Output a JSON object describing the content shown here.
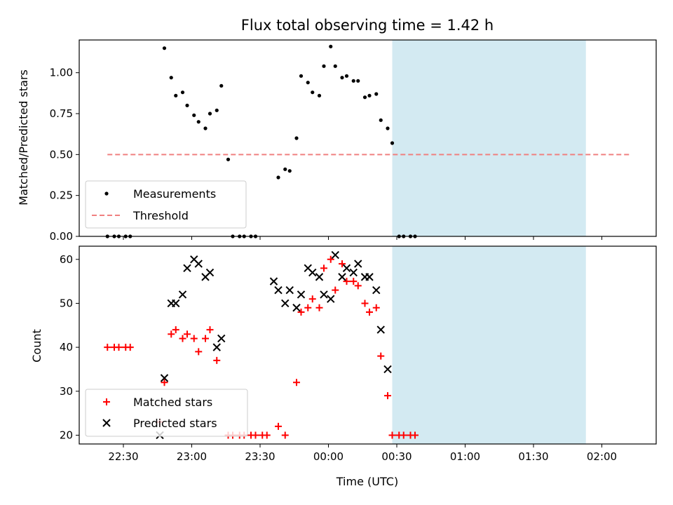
{
  "chart_data": {
    "title": "Flux total observing time = 1.42 h",
    "xlabel": "Time (UTC)",
    "x_ticks": [
      "22:30",
      "23:00",
      "23:30",
      "00:00",
      "00:30",
      "01:00",
      "01:30",
      "02:00"
    ],
    "shaded_region": {
      "x_start": "00:28",
      "x_end": "01:53",
      "color": "#d3eaf2"
    },
    "top": {
      "type": "scatter",
      "ylabel": "Matched/Predicted stars",
      "ylim": [
        0,
        1.2
      ],
      "y_ticks": [
        "0.00",
        "0.25",
        "0.50",
        "0.75",
        "1.00"
      ],
      "threshold": {
        "value": 0.5,
        "x_start": "22:23",
        "x_end": "02:13",
        "color": "#f08080"
      },
      "legend": {
        "placement": "lower-left",
        "items": [
          "Measurements",
          "Threshold"
        ]
      },
      "series": [
        {
          "name": "Measurements",
          "color": "#000000",
          "points": [
            {
              "x": "22:23",
              "y": 0.0
            },
            {
              "x": "22:26",
              "y": 0.0
            },
            {
              "x": "22:28",
              "y": 0.0
            },
            {
              "x": "22:31",
              "y": 0.0
            },
            {
              "x": "22:33",
              "y": 0.0
            },
            {
              "x": "22:48",
              "y": 1.15
            },
            {
              "x": "22:51",
              "y": 0.97
            },
            {
              "x": "22:53",
              "y": 0.86
            },
            {
              "x": "22:56",
              "y": 0.88
            },
            {
              "x": "22:58",
              "y": 0.8
            },
            {
              "x": "23:01",
              "y": 0.74
            },
            {
              "x": "23:03",
              "y": 0.7
            },
            {
              "x": "23:06",
              "y": 0.66
            },
            {
              "x": "23:08",
              "y": 0.75
            },
            {
              "x": "23:11",
              "y": 0.77
            },
            {
              "x": "23:13",
              "y": 0.92
            },
            {
              "x": "23:16",
              "y": 0.47
            },
            {
              "x": "23:18",
              "y": 0.0
            },
            {
              "x": "23:21",
              "y": 0.0
            },
            {
              "x": "23:23",
              "y": 0.0
            },
            {
              "x": "23:26",
              "y": 0.0
            },
            {
              "x": "23:28",
              "y": 0.0
            },
            {
              "x": "23:38",
              "y": 0.36
            },
            {
              "x": "23:41",
              "y": 0.41
            },
            {
              "x": "23:43",
              "y": 0.4
            },
            {
              "x": "23:46",
              "y": 0.6
            },
            {
              "x": "23:48",
              "y": 0.98
            },
            {
              "x": "23:51",
              "y": 0.94
            },
            {
              "x": "23:53",
              "y": 0.88
            },
            {
              "x": "23:56",
              "y": 0.86
            },
            {
              "x": "23:58",
              "y": 1.04
            },
            {
              "x": "00:01",
              "y": 1.16
            },
            {
              "x": "00:03",
              "y": 1.04
            },
            {
              "x": "00:06",
              "y": 0.97
            },
            {
              "x": "00:08",
              "y": 0.98
            },
            {
              "x": "00:11",
              "y": 0.95
            },
            {
              "x": "00:13",
              "y": 0.95
            },
            {
              "x": "00:16",
              "y": 0.85
            },
            {
              "x": "00:18",
              "y": 0.86
            },
            {
              "x": "00:21",
              "y": 0.87
            },
            {
              "x": "00:23",
              "y": 0.71
            },
            {
              "x": "00:26",
              "y": 0.66
            },
            {
              "x": "00:28",
              "y": 0.57
            },
            {
              "x": "00:31",
              "y": 0.0
            },
            {
              "x": "00:33",
              "y": 0.0
            },
            {
              "x": "00:36",
              "y": 0.0
            },
            {
              "x": "00:38",
              "y": 0.0
            }
          ]
        }
      ]
    },
    "bottom": {
      "type": "scatter",
      "ylabel": "Count",
      "ylim": [
        18,
        63
      ],
      "y_ticks": [
        "20",
        "30",
        "40",
        "50",
        "60"
      ],
      "legend": {
        "placement": "lower-left",
        "items": [
          "Matched stars",
          "Predicted stars"
        ]
      },
      "series": [
        {
          "name": "Matched stars",
          "color": "#ff0000",
          "marker": "plus",
          "points": [
            {
              "x": "22:23",
              "y": 40
            },
            {
              "x": "22:26",
              "y": 40
            },
            {
              "x": "22:28",
              "y": 40
            },
            {
              "x": "22:31",
              "y": 40
            },
            {
              "x": "22:33",
              "y": 40
            },
            {
              "x": "22:46",
              "y": 23
            },
            {
              "x": "22:48",
              "y": 32
            },
            {
              "x": "22:51",
              "y": 43
            },
            {
              "x": "22:53",
              "y": 44
            },
            {
              "x": "22:56",
              "y": 42
            },
            {
              "x": "22:58",
              "y": 43
            },
            {
              "x": "23:01",
              "y": 42
            },
            {
              "x": "23:03",
              "y": 39
            },
            {
              "x": "23:06",
              "y": 42
            },
            {
              "x": "23:08",
              "y": 44
            },
            {
              "x": "23:11",
              "y": 37
            },
            {
              "x": "23:16",
              "y": 20
            },
            {
              "x": "23:18",
              "y": 20
            },
            {
              "x": "23:21",
              "y": 20
            },
            {
              "x": "23:23",
              "y": 20
            },
            {
              "x": "23:26",
              "y": 20
            },
            {
              "x": "23:28",
              "y": 20
            },
            {
              "x": "23:31",
              "y": 20
            },
            {
              "x": "23:33",
              "y": 20
            },
            {
              "x": "23:38",
              "y": 22
            },
            {
              "x": "23:41",
              "y": 20
            },
            {
              "x": "23:46",
              "y": 32
            },
            {
              "x": "23:48",
              "y": 48
            },
            {
              "x": "23:51",
              "y": 49
            },
            {
              "x": "23:53",
              "y": 51
            },
            {
              "x": "23:56",
              "y": 49
            },
            {
              "x": "23:58",
              "y": 58
            },
            {
              "x": "00:01",
              "y": 60
            },
            {
              "x": "00:03",
              "y": 53
            },
            {
              "x": "00:06",
              "y": 59
            },
            {
              "x": "00:08",
              "y": 55
            },
            {
              "x": "00:11",
              "y": 55
            },
            {
              "x": "00:13",
              "y": 54
            },
            {
              "x": "00:16",
              "y": 50
            },
            {
              "x": "00:18",
              "y": 48
            },
            {
              "x": "00:21",
              "y": 49
            },
            {
              "x": "00:23",
              "y": 38
            },
            {
              "x": "00:26",
              "y": 29
            },
            {
              "x": "00:28",
              "y": 20
            },
            {
              "x": "00:31",
              "y": 20
            },
            {
              "x": "00:33",
              "y": 20
            },
            {
              "x": "00:36",
              "y": 20
            },
            {
              "x": "00:38",
              "y": 20
            }
          ]
        },
        {
          "name": "Predicted stars",
          "color": "#000000",
          "marker": "x",
          "points": [
            {
              "x": "22:46",
              "y": 20
            },
            {
              "x": "22:48",
              "y": 33
            },
            {
              "x": "22:51",
              "y": 50
            },
            {
              "x": "22:53",
              "y": 50
            },
            {
              "x": "22:56",
              "y": 52
            },
            {
              "x": "22:58",
              "y": 58
            },
            {
              "x": "23:01",
              "y": 60
            },
            {
              "x": "23:03",
              "y": 59
            },
            {
              "x": "23:06",
              "y": 56
            },
            {
              "x": "23:08",
              "y": 57
            },
            {
              "x": "23:11",
              "y": 40
            },
            {
              "x": "23:13",
              "y": 42
            },
            {
              "x": "23:36",
              "y": 55
            },
            {
              "x": "23:38",
              "y": 53
            },
            {
              "x": "23:41",
              "y": 50
            },
            {
              "x": "23:43",
              "y": 53
            },
            {
              "x": "23:46",
              "y": 49
            },
            {
              "x": "23:48",
              "y": 52
            },
            {
              "x": "23:51",
              "y": 58
            },
            {
              "x": "23:53",
              "y": 57
            },
            {
              "x": "23:56",
              "y": 56
            },
            {
              "x": "23:58",
              "y": 52
            },
            {
              "x": "00:01",
              "y": 51
            },
            {
              "x": "00:03",
              "y": 61
            },
            {
              "x": "00:06",
              "y": 56
            },
            {
              "x": "00:08",
              "y": 58
            },
            {
              "x": "00:11",
              "y": 57
            },
            {
              "x": "00:13",
              "y": 59
            },
            {
              "x": "00:16",
              "y": 56
            },
            {
              "x": "00:18",
              "y": 56
            },
            {
              "x": "00:21",
              "y": 53
            },
            {
              "x": "00:23",
              "y": 44
            },
            {
              "x": "00:26",
              "y": 35
            }
          ]
        }
      ]
    }
  }
}
